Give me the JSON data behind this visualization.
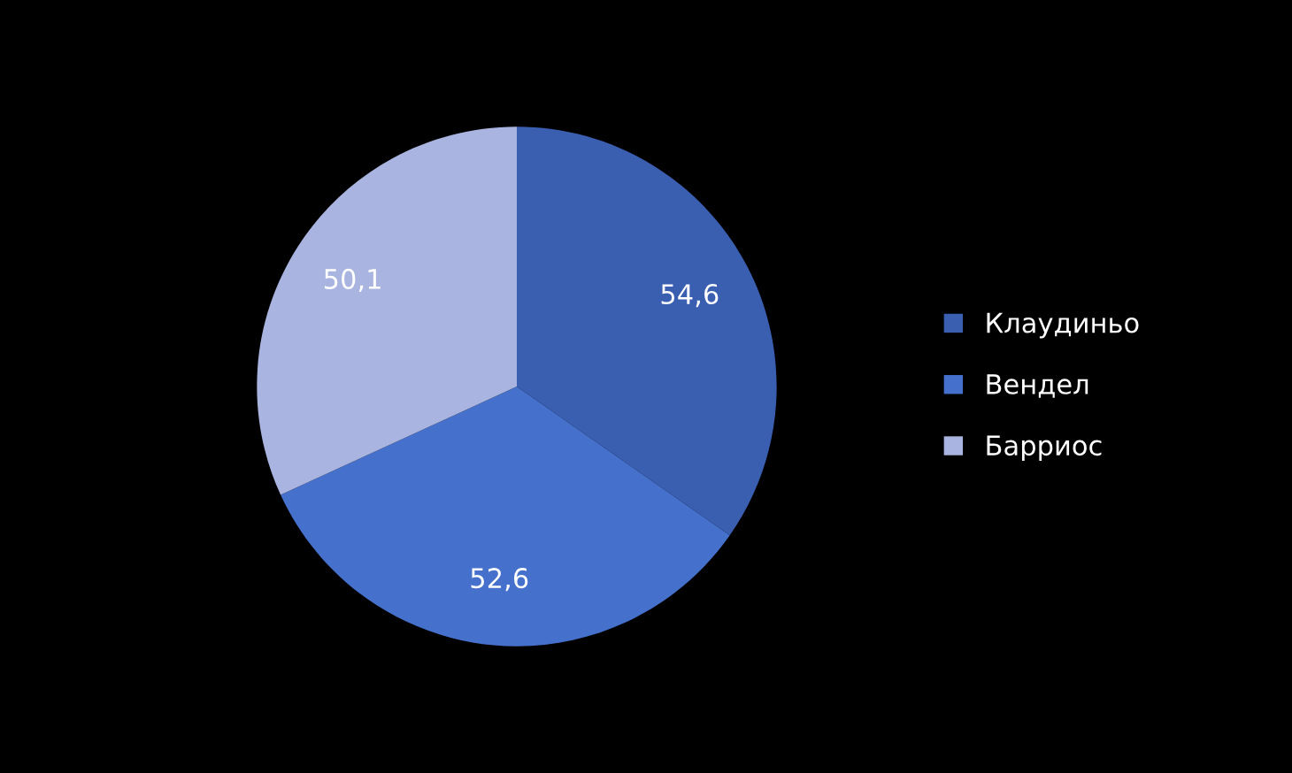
{
  "chart_data": {
    "type": "pie",
    "categories": [
      "Клаудиньо",
      "Вендел",
      "Барриос"
    ],
    "values": [
      54.6,
      52.6,
      50.1
    ],
    "colors": [
      "#3a5eb0",
      "#4571cc",
      "#a9b5e0"
    ],
    "value_labels": [
      "54,6",
      "52,6",
      "50,1"
    ],
    "legend": "right"
  }
}
